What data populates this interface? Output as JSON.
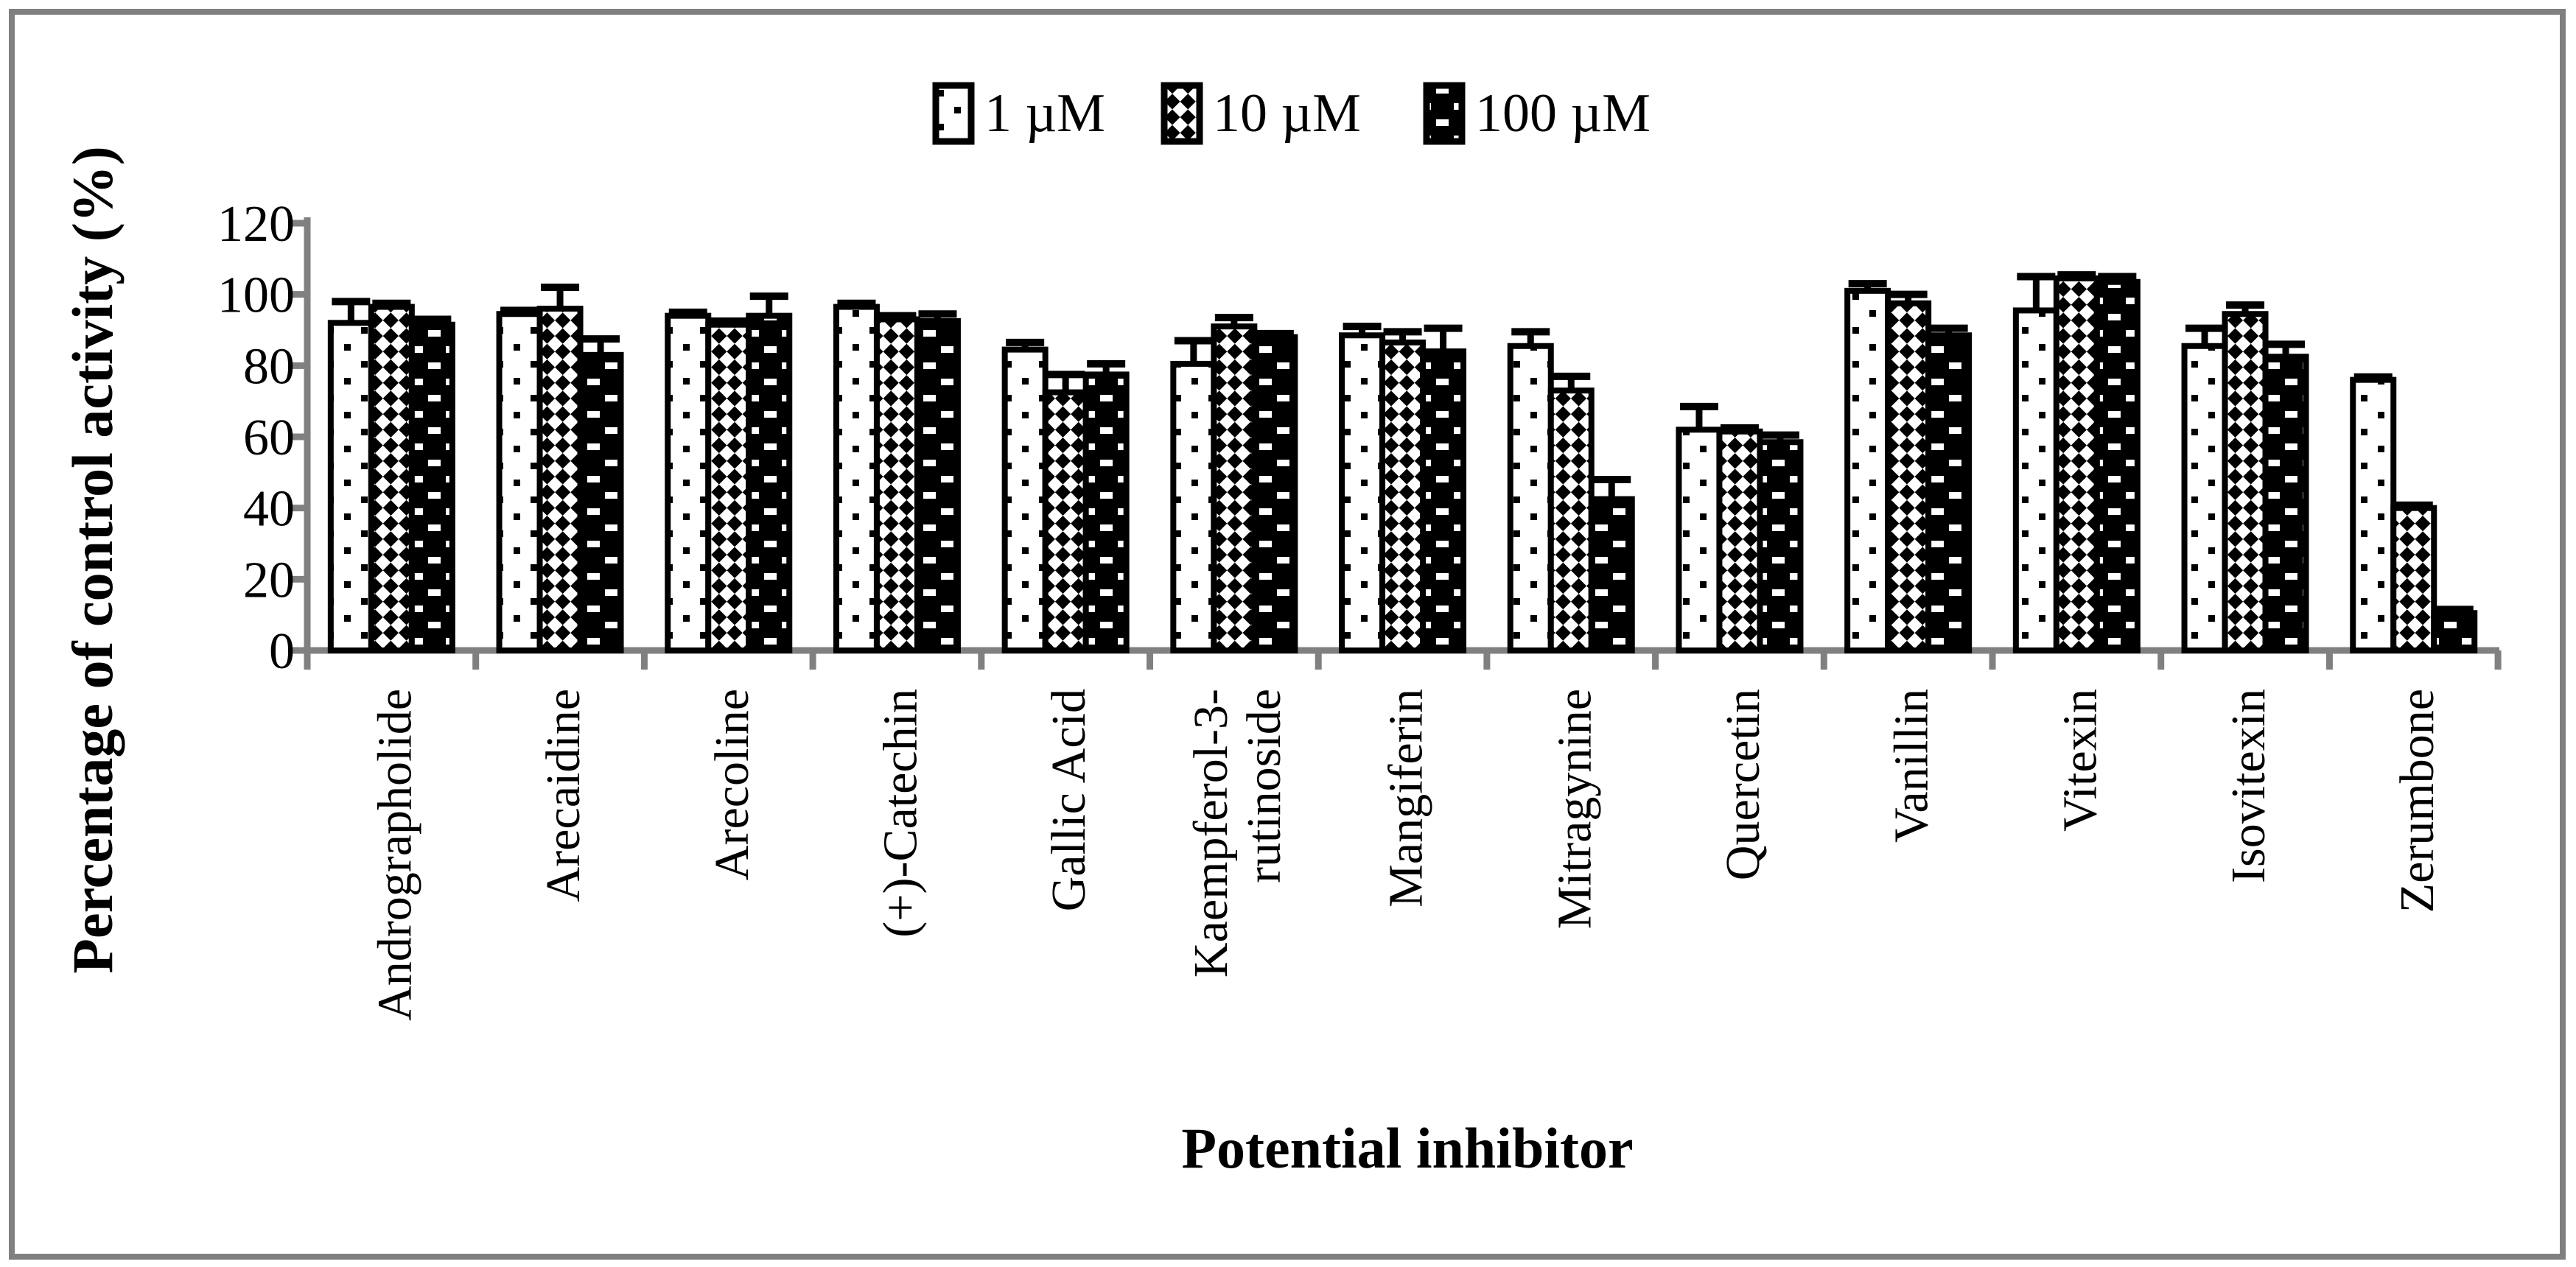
{
  "frame": {
    "border_color": "#808080",
    "background_color": "#ffffff"
  },
  "chart_data": {
    "type": "bar",
    "title": "",
    "xlabel": "Potential inhibitor",
    "ylabel": "Percentage of control activity (%)",
    "ylim": [
      0,
      120
    ],
    "yticks": [
      0,
      20,
      40,
      60,
      80,
      100,
      120
    ],
    "grid": false,
    "legend_position": "top-center",
    "error_bars": "upper",
    "categories": [
      "Andrographolide",
      "Arecaidine",
      "Arecoline",
      "(+)-Catechin",
      "Gallic Acid",
      "Kaempferol-3-\nrutinoside",
      "Mangiferin",
      "Mitragynine",
      "Quercetin",
      "Vanillin",
      "Vitexin",
      "Isovitexin",
      "Zerumbone"
    ],
    "series": [
      {
        "name": "1 µM",
        "pattern": "white-sparse-black-dots",
        "values": [
          92,
          94.5,
          94,
          96.5,
          84.5,
          80.5,
          88.5,
          85.5,
          62,
          101,
          95.5,
          85.5,
          76
        ],
        "errors_up": [
          6,
          1,
          1,
          1,
          2,
          6.5,
          2.5,
          4,
          6.5,
          2,
          9.5,
          5,
          0.8
        ]
      },
      {
        "name": "10 µM",
        "pattern": "diagonal-checkerboard",
        "values": [
          96.5,
          96,
          91.5,
          93,
          72.5,
          91,
          86.5,
          73,
          61.5,
          97.5,
          104.5,
          94.5,
          40
        ],
        "errors_up": [
          1,
          6,
          1,
          1,
          5,
          2.5,
          3,
          4,
          1,
          2.5,
          1,
          2.5,
          0.8
        ]
      },
      {
        "name": "100 µM",
        "pattern": "black-with-white-dashes",
        "values": [
          91.5,
          83,
          94,
          92.5,
          77.5,
          88,
          84,
          42.5,
          58.5,
          88.5,
          103.5,
          82.5,
          10.5
        ],
        "errors_up": [
          1.5,
          4.5,
          5.5,
          2,
          3,
          1,
          6.5,
          5.5,
          2,
          2,
          1.5,
          3.5,
          1
        ]
      }
    ],
    "colors": {
      "bar_outline": "#000000",
      "bar_fill_base": "#ffffff",
      "axis": "#808080",
      "text": "#000000"
    }
  }
}
